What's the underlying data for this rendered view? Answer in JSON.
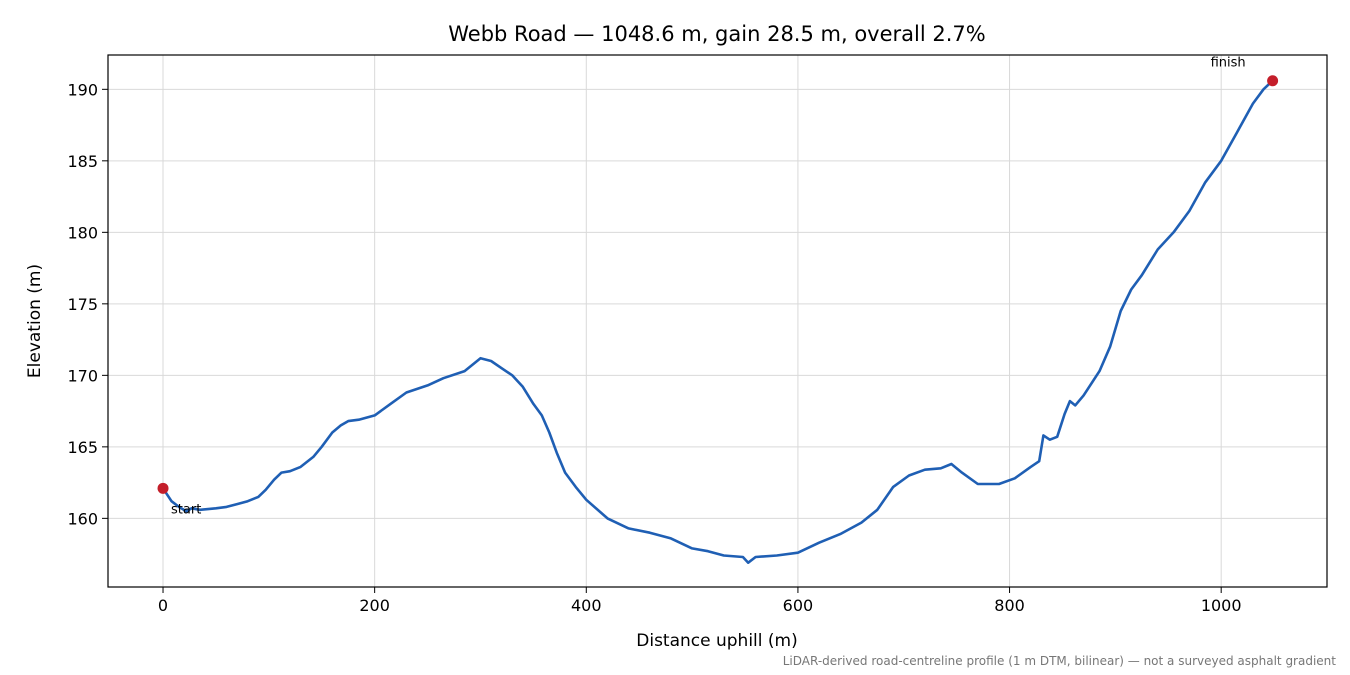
{
  "chart_data": {
    "type": "line",
    "title": "Webb Road — 1048.6 m, gain 28.5 m, overall 2.7%",
    "xlabel": "Distance uphill (m)",
    "ylabel": "Elevation (m)",
    "xlim": [
      -52,
      1100
    ],
    "ylim": [
      155.2,
      192.4
    ],
    "xticks": [
      0,
      200,
      400,
      600,
      800,
      1000
    ],
    "yticks": [
      160,
      165,
      170,
      175,
      180,
      185,
      190
    ],
    "grid": true,
    "line_color": "#1f5fb4",
    "marker_color": "#c41e2a",
    "series": [
      {
        "x": [
          0,
          8,
          15,
          22,
          27,
          35,
          50,
          60,
          70,
          80,
          90,
          97,
          105,
          112,
          120,
          130,
          142,
          150,
          160,
          168,
          175,
          185,
          200,
          215,
          230,
          250,
          265,
          285,
          300,
          310,
          320,
          330,
          340,
          350,
          358,
          365,
          372,
          380,
          390,
          400,
          420,
          440,
          460,
          480,
          500,
          515,
          530,
          548,
          553,
          560,
          580,
          600,
          620,
          640,
          660,
          675,
          690,
          705,
          720,
          735,
          745,
          755,
          770,
          790,
          805,
          820,
          828,
          832,
          838,
          845,
          852,
          857,
          862,
          870,
          885,
          895,
          905,
          915,
          925,
          940,
          955,
          970,
          985,
          1000,
          1015,
          1030,
          1040,
          1048.6
        ],
        "y": [
          162.1,
          161.2,
          160.8,
          160.5,
          160.7,
          160.6,
          160.7,
          160.8,
          161.0,
          161.2,
          161.5,
          162.0,
          162.7,
          163.2,
          163.3,
          163.6,
          164.3,
          165.0,
          166.0,
          166.5,
          166.8,
          166.9,
          167.2,
          168.0,
          168.8,
          169.3,
          169.8,
          170.3,
          171.2,
          171.0,
          170.5,
          170.0,
          169.2,
          168.0,
          167.2,
          166.0,
          164.6,
          163.2,
          162.2,
          161.3,
          160.0,
          159.3,
          159.0,
          158.6,
          157.9,
          157.7,
          157.4,
          157.3,
          156.9,
          157.3,
          157.4,
          157.6,
          158.3,
          158.9,
          159.7,
          160.6,
          162.2,
          163.0,
          163.4,
          163.5,
          163.8,
          163.2,
          162.4,
          162.4,
          162.8,
          163.6,
          164.0,
          165.8,
          165.5,
          165.7,
          167.3,
          168.2,
          167.9,
          168.6,
          170.3,
          172.0,
          174.5,
          176.0,
          177.0,
          178.8,
          180.0,
          181.5,
          183.5,
          185.0,
          187.0,
          189.0,
          190.0,
          190.6
        ]
      }
    ],
    "points": [
      {
        "x": 0,
        "y": 162.1,
        "label": "start"
      },
      {
        "x": 1048.6,
        "y": 190.6,
        "label": "finish"
      }
    ],
    "footnote": "LiDAR-derived road-centreline profile (1 m DTM, bilinear) — not a surveyed asphalt gradient"
  }
}
